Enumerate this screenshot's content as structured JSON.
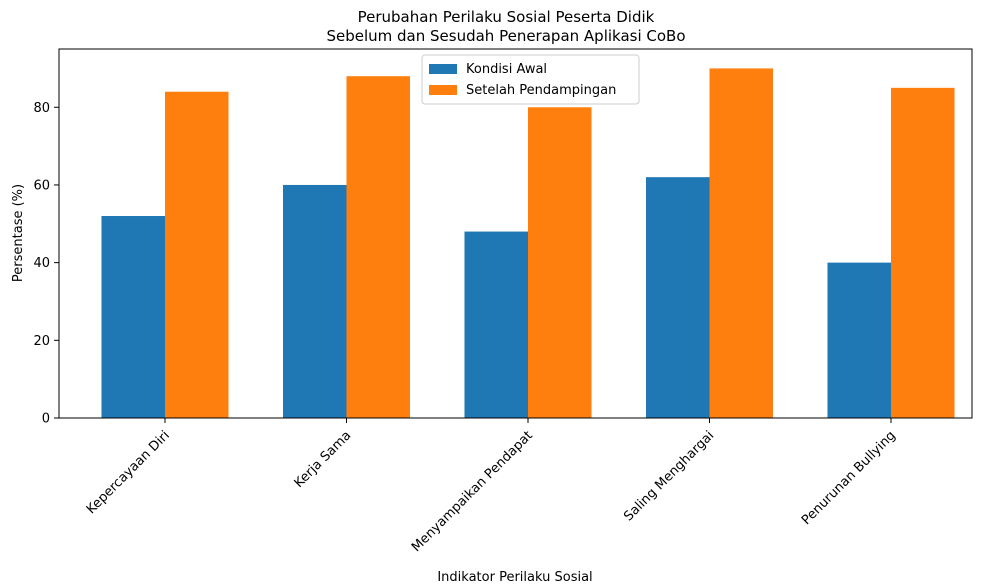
{
  "chart_data": {
    "type": "bar",
    "title_lines": [
      "Perubahan Perilaku Sosial Peserta Didik",
      "Sebelum dan Sesudah Penerapan Aplikasi CoBo"
    ],
    "xlabel": "Indikator Perilaku Sosial",
    "ylabel": "Persentase (%)",
    "categories": [
      "Kepercayaan Diri",
      "Kerja Sama",
      "Menyampaikan Pendapat",
      "Saling Menghargai",
      "Penurunan Bullying"
    ],
    "series": [
      {
        "name": "Kondisi Awal",
        "color": "#1f77b4",
        "values": [
          52,
          60,
          48,
          62,
          40
        ]
      },
      {
        "name": "Setelah Pendampingan",
        "color": "#ff7f0e",
        "values": [
          84,
          88,
          80,
          90,
          85
        ]
      }
    ],
    "ylim": [
      0,
      95
    ],
    "yticks": [
      0,
      20,
      40,
      60,
      80
    ],
    "grid": false,
    "legend_position": "top-center"
  }
}
